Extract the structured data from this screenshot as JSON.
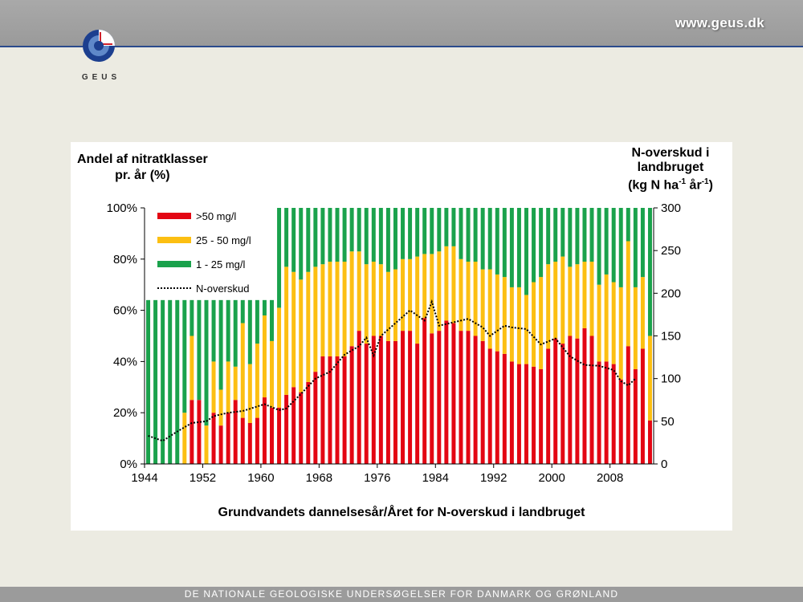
{
  "header": {
    "site_url": "www.geus.dk"
  },
  "logo": {
    "text": "GEUS"
  },
  "footer": {
    "text": "DE NATIONALE GEOLOGISKE UNDERSØGELSER FOR DANMARK OG GRØNLAND"
  },
  "colors": {
    "red": "#e30613",
    "orange": "#fcbf12",
    "green": "#1aa24c",
    "line": "#000000"
  },
  "chart_data": {
    "type": "bar",
    "stacked": true,
    "title": "",
    "ylabel_left_line1": "Andel af nitratklasser",
    "ylabel_left_line2": "pr. år (%)",
    "ylabel_right_line1": "N-overskud i",
    "ylabel_right_line2": "landbruget",
    "ylabel_right_unit_a": "(kg N ha",
    "ylabel_right_sup1": "-1",
    "ylabel_right_unit_b": " år",
    "ylabel_right_sup2": "-1",
    "ylabel_right_unit_c": ")",
    "xlabel": "Grundvandets dannelsesår/Året for N-overskud i landbruget",
    "ylim_left": [
      0,
      100
    ],
    "ylim_right": [
      0,
      300
    ],
    "yticks_left": [
      "0%",
      "20%",
      "40%",
      "60%",
      "80%",
      "100%"
    ],
    "yticks_right": [
      "0",
      "50",
      "100",
      "150",
      "200",
      "250",
      "300"
    ],
    "xticks": [
      "1944",
      "1952",
      "1960",
      "1968",
      "1976",
      "1984",
      "1992",
      "2000",
      "2008"
    ],
    "x": [
      1944,
      1945,
      1946,
      1947,
      1948,
      1949,
      1950,
      1951,
      1952,
      1953,
      1954,
      1955,
      1956,
      1957,
      1958,
      1959,
      1960,
      1961,
      1962,
      1963,
      1964,
      1965,
      1966,
      1967,
      1968,
      1969,
      1970,
      1971,
      1972,
      1973,
      1974,
      1975,
      1976,
      1977,
      1978,
      1979,
      1980,
      1981,
      1982,
      1983,
      1984,
      1985,
      1986,
      1987,
      1988,
      1989,
      1990,
      1991,
      1992,
      1993,
      1994,
      1995,
      1996,
      1997,
      1998,
      1999,
      2000,
      2001,
      2002,
      2003,
      2004,
      2005,
      2006,
      2007,
      2008,
      2009,
      2010,
      2011,
      2012,
      2013
    ],
    "legend_position": "top-left",
    "series": [
      {
        "name": ">50 mg/l",
        "color": "#e30613",
        "values": [
          0,
          0,
          0,
          0,
          0,
          0,
          25,
          25,
          0,
          20,
          15,
          20,
          25,
          18,
          16,
          18,
          26,
          22,
          22,
          27,
          30,
          28,
          32,
          36,
          42,
          42,
          42,
          42,
          46,
          52,
          47,
          50,
          50,
          48,
          48,
          52,
          52,
          47,
          57,
          51,
          52,
          56,
          55,
          52,
          52,
          50,
          48,
          45,
          44,
          43,
          40,
          39,
          39,
          38,
          37,
          45,
          49,
          47,
          50,
          49,
          53,
          50,
          40,
          40,
          39,
          33,
          46,
          37,
          45,
          17
        ]
      },
      {
        "name": "25 - 50 mg/l",
        "color": "#fcbf12",
        "values": [
          0,
          0,
          0,
          0,
          0,
          20,
          25,
          0,
          15,
          20,
          14,
          20,
          13,
          37,
          23,
          29,
          32,
          26,
          39,
          50,
          45,
          44,
          43,
          41,
          36,
          37,
          37,
          37,
          37,
          31,
          31,
          29,
          28,
          27,
          28,
          28,
          28,
          34,
          25,
          31,
          31,
          29,
          30,
          28,
          27,
          29,
          28,
          31,
          30,
          30,
          29,
          30,
          27,
          33,
          36,
          33,
          30,
          34,
          27,
          29,
          26,
          29,
          30,
          34,
          32,
          36,
          41,
          32,
          28,
          33
        ]
      },
      {
        "name": "1 - 25 mg/l",
        "color": "#1aa24c",
        "values": [
          64,
          64,
          64,
          64,
          64,
          44,
          14,
          39,
          49,
          24,
          35,
          24,
          26,
          9,
          25,
          17,
          6,
          16,
          39,
          23,
          25,
          28,
          25,
          23,
          22,
          21,
          21,
          21,
          17,
          17,
          22,
          21,
          22,
          25,
          24,
          20,
          20,
          19,
          18,
          18,
          17,
          15,
          15,
          20,
          21,
          21,
          24,
          24,
          26,
          27,
          31,
          31,
          34,
          29,
          27,
          22,
          21,
          19,
          23,
          22,
          21,
          21,
          30,
          26,
          29,
          31,
          13,
          31,
          27,
          50
        ]
      },
      {
        "name": "N-overskud",
        "type": "line",
        "axis": "right",
        "style": "dotted",
        "x": [
          1944,
          1946,
          1948,
          1950,
          1952,
          1953,
          1955,
          1957,
          1960,
          1962,
          1963,
          1965,
          1967,
          1969,
          1971,
          1973,
          1974,
          1975,
          1976,
          1978,
          1980,
          1982,
          1983,
          1984,
          1986,
          1988,
          1990,
          1991,
          1993,
          1994,
          1996,
          1998,
          2000,
          2002,
          2004,
          2006,
          2008,
          2009,
          2010,
          2011
        ],
        "values": [
          33,
          27,
          38,
          48,
          50,
          56,
          60,
          62,
          70,
          63,
          65,
          82,
          100,
          108,
          128,
          138,
          148,
          127,
          150,
          165,
          180,
          168,
          190,
          162,
          166,
          170,
          160,
          150,
          162,
          160,
          158,
          140,
          147,
          126,
          116,
          115,
          110,
          97,
          92,
          100
        ]
      }
    ]
  }
}
